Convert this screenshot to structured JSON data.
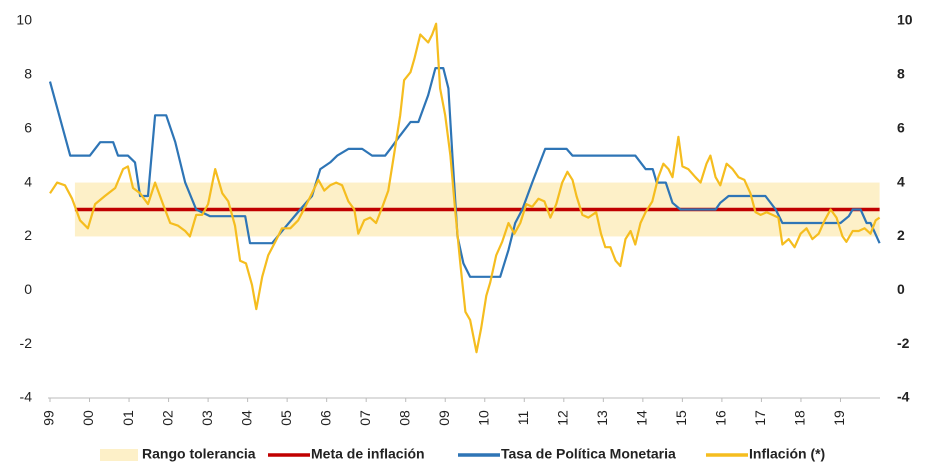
{
  "chart_data": {
    "type": "line",
    "xlim": [
      1999,
      2020
    ],
    "xticks": [
      {
        "value": 1999,
        "label": "99"
      },
      {
        "value": 2000,
        "label": "00"
      },
      {
        "value": 2001,
        "label": "01"
      },
      {
        "value": 2002,
        "label": "02"
      },
      {
        "value": 2003,
        "label": "03"
      },
      {
        "value": 2004,
        "label": "04"
      },
      {
        "value": 2005,
        "label": "05"
      },
      {
        "value": 2006,
        "label": "06"
      },
      {
        "value": 2007,
        "label": "07"
      },
      {
        "value": 2008,
        "label": "08"
      },
      {
        "value": 2009,
        "label": "09"
      },
      {
        "value": 2010,
        "label": "10"
      },
      {
        "value": 2011,
        "label": "11"
      },
      {
        "value": 2012,
        "label": "12"
      },
      {
        "value": 2013,
        "label": "13"
      },
      {
        "value": 2014,
        "label": "14"
      },
      {
        "value": 2015,
        "label": "15"
      },
      {
        "value": 2016,
        "label": "16"
      },
      {
        "value": 2017,
        "label": "17"
      },
      {
        "value": 2018,
        "label": "18"
      },
      {
        "value": 2019,
        "label": "19"
      }
    ],
    "ylim": [
      -4,
      10
    ],
    "yticks": [
      -4,
      -2,
      0,
      2,
      4,
      6,
      8,
      10
    ],
    "y2lim": [
      -4,
      10
    ],
    "y2ticks": [
      -4,
      -2,
      0,
      2,
      4,
      6,
      8,
      10
    ],
    "legend": "bottom",
    "series": [
      {
        "name": "Rango tolerancia",
        "kind": "band",
        "color": "#fdf0c8",
        "x": [
          1999.63,
          2019.99
        ],
        "low": [
          2,
          2
        ],
        "high": [
          4,
          4
        ]
      },
      {
        "name": "Meta de inflación",
        "color": "#c00000",
        "x": [
          1999.63,
          2019.99
        ],
        "values": [
          3,
          3
        ]
      },
      {
        "name": "Tasa de Política Monetaria",
        "color": "#2e75b6",
        "x": [
          1999.0,
          1999.51,
          2000.01,
          2000.27,
          2000.6,
          2000.72,
          2000.97,
          2001.15,
          2001.28,
          2001.48,
          2001.66,
          2001.94,
          2002.17,
          2002.42,
          2002.7,
          2003.05,
          2003.94,
          2004.06,
          2004.62,
          2004.9,
          2005.33,
          2005.63,
          2005.84,
          2006.09,
          2006.27,
          2006.55,
          2006.9,
          2007.15,
          2007.48,
          2007.61,
          2007.86,
          2008.12,
          2008.32,
          2008.57,
          2008.75,
          2008.95,
          2009.08,
          2009.18,
          2009.31,
          2009.46,
          2009.63,
          2010.39,
          2010.6,
          2010.77,
          2010.95,
          2011.2,
          2011.53,
          2012.07,
          2012.22,
          2013.81,
          2014.07,
          2014.25,
          2014.35,
          2014.58,
          2014.75,
          2014.95,
          2015.84,
          2015.96,
          2016.17,
          2017.1,
          2017.36,
          2017.53,
          2019.0,
          2019.21,
          2019.31,
          2019.51,
          2019.66,
          2019.76,
          2019.99
        ],
        "values": [
          7.75,
          5,
          5,
          5.5,
          5.5,
          5,
          5,
          4.75,
          3.5,
          3.5,
          6.5,
          6.5,
          5.5,
          4,
          3,
          2.75,
          2.75,
          1.75,
          1.75,
          2.25,
          3,
          3.5,
          4.5,
          4.75,
          5,
          5.25,
          5.25,
          5,
          5,
          5.25,
          5.75,
          6.25,
          6.25,
          7.25,
          8.25,
          8.25,
          7.5,
          5,
          2,
          1,
          0.5,
          0.5,
          1.5,
          2.5,
          3,
          4,
          5.25,
          5.25,
          5,
          5,
          4.5,
          4.5,
          4,
          4,
          3.25,
          3,
          3,
          3.25,
          3.5,
          3.5,
          3,
          2.5,
          2.5,
          2.75,
          3,
          3,
          2.5,
          2.5,
          1.75
        ]
      },
      {
        "name": "Inflación (*)",
        "color": "#f5bd1f",
        "x": [
          1999.0,
          1999.18,
          1999.38,
          1999.56,
          1999.76,
          1999.96,
          2000.14,
          2000.39,
          2000.65,
          2000.85,
          2000.97,
          2001.1,
          2001.28,
          2001.48,
          2001.66,
          2001.86,
          2002.04,
          2002.24,
          2002.42,
          2002.54,
          2002.7,
          2002.85,
          2003.0,
          2003.18,
          2003.36,
          2003.51,
          2003.68,
          2003.81,
          2003.96,
          2004.11,
          2004.22,
          2004.37,
          2004.52,
          2004.7,
          2004.87,
          2005.08,
          2005.28,
          2005.46,
          2005.63,
          2005.79,
          2005.94,
          2006.09,
          2006.24,
          2006.39,
          2006.55,
          2006.7,
          2006.8,
          2006.95,
          2007.1,
          2007.25,
          2007.41,
          2007.56,
          2007.71,
          2007.86,
          2007.96,
          2008.12,
          2008.22,
          2008.37,
          2008.57,
          2008.67,
          2008.77,
          2008.87,
          2009.0,
          2009.13,
          2009.25,
          2009.38,
          2009.51,
          2009.63,
          2009.79,
          2009.91,
          2010.04,
          2010.14,
          2010.29,
          2010.44,
          2010.6,
          2010.75,
          2010.9,
          2011.05,
          2011.2,
          2011.36,
          2011.51,
          2011.66,
          2011.81,
          2011.96,
          2012.09,
          2012.22,
          2012.32,
          2012.47,
          2012.62,
          2012.82,
          2012.94,
          2013.05,
          2013.18,
          2013.31,
          2013.43,
          2013.56,
          2013.69,
          2013.81,
          2013.94,
          2014.07,
          2014.24,
          2014.39,
          2014.52,
          2014.65,
          2014.75,
          2014.9,
          2015.0,
          2015.15,
          2015.33,
          2015.46,
          2015.61,
          2015.71,
          2015.84,
          2015.96,
          2016.12,
          2016.27,
          2016.42,
          2016.57,
          2016.72,
          2016.85,
          2016.98,
          2017.13,
          2017.28,
          2017.43,
          2017.53,
          2017.69,
          2017.84,
          2017.99,
          2018.14,
          2018.29,
          2018.45,
          2018.6,
          2018.75,
          2018.9,
          2019.05,
          2019.15,
          2019.31,
          2019.46,
          2019.61,
          2019.76,
          2019.89,
          2019.99
        ],
        "values": [
          3.6,
          4.0,
          3.9,
          3.4,
          2.6,
          2.3,
          3.2,
          3.5,
          3.8,
          4.5,
          4.6,
          3.8,
          3.6,
          3.2,
          4.0,
          3.2,
          2.5,
          2.4,
          2.2,
          2.0,
          2.8,
          2.8,
          3.2,
          4.5,
          3.6,
          3.3,
          2.4,
          1.1,
          1.0,
          0.2,
          -0.7,
          0.5,
          1.3,
          1.8,
          2.3,
          2.3,
          2.6,
          3.1,
          3.6,
          4.1,
          3.7,
          3.9,
          4.0,
          3.9,
          3.3,
          3.0,
          2.1,
          2.6,
          2.7,
          2.5,
          3.1,
          3.7,
          5.1,
          6.5,
          7.8,
          8.1,
          8.6,
          9.5,
          9.2,
          9.5,
          9.9,
          7.5,
          6.5,
          5.0,
          3.0,
          1.0,
          -0.8,
          -1.1,
          -2.3,
          -1.4,
          -0.2,
          0.3,
          1.3,
          1.8,
          2.5,
          2.1,
          2.5,
          3.2,
          3.1,
          3.4,
          3.3,
          2.7,
          3.2,
          4.0,
          4.4,
          4.1,
          3.5,
          2.8,
          2.7,
          2.9,
          2.1,
          1.6,
          1.6,
          1.1,
          0.9,
          1.9,
          2.2,
          1.7,
          2.5,
          2.9,
          3.3,
          4.2,
          4.7,
          4.5,
          4.2,
          5.7,
          4.6,
          4.5,
          4.2,
          4.0,
          4.7,
          5.0,
          4.2,
          3.9,
          4.7,
          4.5,
          4.2,
          4.1,
          3.6,
          2.9,
          2.8,
          2.9,
          2.8,
          2.7,
          1.7,
          1.9,
          1.6,
          2.1,
          2.3,
          1.9,
          2.1,
          2.6,
          3.0,
          2.7,
          2.0,
          1.8,
          2.2,
          2.2,
          2.3,
          2.1,
          2.6,
          2.7
        ]
      }
    ]
  }
}
